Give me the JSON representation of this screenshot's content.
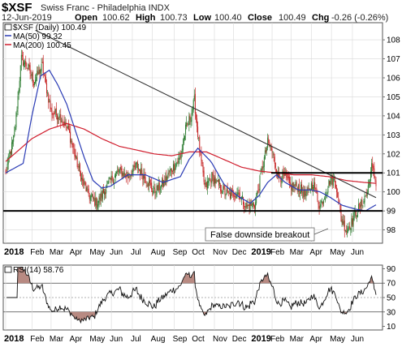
{
  "header": {
    "symbol": "$XSF",
    "name": "Swiss Franc - Philadelphia INDX",
    "date": "12-Jun-2019",
    "open_label": "Open",
    "open": "100.62",
    "high_label": "High",
    "high": "100.73",
    "low_label": "Low",
    "low": "100.40",
    "close_label": "Close",
    "close": "100.49",
    "chg_label": "Chg",
    "chg": "-0.26 (-0.26%)"
  },
  "legend": {
    "price": "$XSF (Daily) 100.49",
    "ma50": "MA(50) 99.32",
    "ma200": "MA(200) 100.45"
  },
  "rsi_legend": "RSI(14) 58.76",
  "annotation": "False downside breakout",
  "colors": {
    "up": "#2e7d32",
    "down": "#c62828",
    "ma50": "#2a3bb5",
    "ma200": "#d01c2c",
    "rsi_fill": "#b88a82",
    "trendline": "#333333",
    "grid": "#d8d8d8"
  },
  "chart_data": [
    {
      "type": "candlestick",
      "title": "$XSF Swiss Franc - Philadelphia INDX",
      "x_labels": [
        "2018",
        "Feb",
        "Mar",
        "Apr",
        "May",
        "Jun",
        "Jul",
        "Aug",
        "Sep",
        "Oct",
        "Nov",
        "Dec",
        "2019",
        "Feb",
        "Mar",
        "Apr",
        "May",
        "Jun"
      ],
      "ylim": [
        97.3,
        108.9
      ],
      "y_ticks": [
        98,
        99,
        100,
        101,
        102,
        103,
        104,
        105,
        106,
        107,
        108
      ],
      "price_anchors_t_close": [
        [
          0,
          101.0
        ],
        [
          10,
          103.0
        ],
        [
          18,
          107.0
        ],
        [
          26,
          106.5
        ],
        [
          32,
          105.8
        ],
        [
          42,
          106.6
        ],
        [
          52,
          104.2
        ],
        [
          62,
          104.0
        ],
        [
          72,
          103.2
        ],
        [
          80,
          101.8
        ],
        [
          88,
          100.5
        ],
        [
          96,
          99.8
        ],
        [
          104,
          99.4
        ],
        [
          112,
          100.0
        ],
        [
          120,
          100.6
        ],
        [
          130,
          101.1
        ],
        [
          140,
          100.8
        ],
        [
          150,
          101.4
        ],
        [
          160,
          100.7
        ],
        [
          170,
          100.0
        ],
        [
          180,
          100.4
        ],
        [
          190,
          101.2
        ],
        [
          200,
          101.8
        ],
        [
          206,
          103.3
        ],
        [
          212,
          104.0
        ],
        [
          216,
          104.8
        ],
        [
          222,
          102.2
        ],
        [
          228,
          100.2
        ],
        [
          236,
          100.8
        ],
        [
          246,
          100.2
        ],
        [
          256,
          99.8
        ],
        [
          266,
          100.0
        ],
        [
          276,
          99.2
        ],
        [
          286,
          99.4
        ],
        [
          294,
          101.3
        ],
        [
          300,
          102.6
        ],
        [
          306,
          102.0
        ],
        [
          312,
          100.8
        ],
        [
          320,
          100.8
        ],
        [
          326,
          100.3
        ],
        [
          334,
          100.3
        ],
        [
          344,
          99.8
        ],
        [
          352,
          100.5
        ],
        [
          360,
          99.2
        ],
        [
          366,
          99.9
        ],
        [
          372,
          100.7
        ],
        [
          378,
          100.5
        ],
        [
          384,
          98.6
        ],
        [
          390,
          98.0
        ],
        [
          396,
          98.4
        ],
        [
          402,
          99.0
        ],
        [
          408,
          99.4
        ],
        [
          414,
          100.0
        ],
        [
          419,
          101.3
        ],
        [
          422,
          100.8
        ],
        [
          424,
          100.5
        ]
      ],
      "series": [
        {
          "name": "MA(50)",
          "final_value": 99.32,
          "anchors_t_value": [
            [
              0,
              101.0
            ],
            [
              20,
              101.5
            ],
            [
              30,
              104.0
            ],
            [
              40,
              106.1
            ],
            [
              50,
              106.4
            ],
            [
              60,
              105.6
            ],
            [
              70,
              104.6
            ],
            [
              80,
              103.2
            ],
            [
              90,
              101.8
            ],
            [
              100,
              100.6
            ],
            [
              110,
              100.2
            ],
            [
              120,
              100.3
            ],
            [
              130,
              100.6
            ],
            [
              140,
              100.9
            ],
            [
              160,
              100.9
            ],
            [
              180,
              100.5
            ],
            [
              200,
              100.8
            ],
            [
              210,
              101.7
            ],
            [
              220,
              102.3
            ],
            [
              235,
              101.6
            ],
            [
              250,
              100.4
            ],
            [
              265,
              99.8
            ],
            [
              280,
              99.4
            ],
            [
              290,
              99.8
            ],
            [
              300,
              100.5
            ],
            [
              310,
              100.9
            ],
            [
              320,
              100.5
            ],
            [
              335,
              100.1
            ],
            [
              350,
              100.1
            ],
            [
              360,
              100.0
            ],
            [
              372,
              99.7
            ],
            [
              385,
              99.3
            ],
            [
              400,
              99.1
            ],
            [
              412,
              99.0
            ],
            [
              424,
              99.32
            ]
          ]
        },
        {
          "name": "MA(200)",
          "final_value": 100.45,
          "anchors_t_value": [
            [
              0,
              101.6
            ],
            [
              15,
              102.2
            ],
            [
              30,
              102.8
            ],
            [
              50,
              103.3
            ],
            [
              70,
              103.6
            ],
            [
              90,
              103.3
            ],
            [
              110,
              102.8
            ],
            [
              130,
              102.4
            ],
            [
              150,
              102.2
            ],
            [
              170,
              102.0
            ],
            [
              190,
              101.9
            ],
            [
              210,
              102.1
            ],
            [
              230,
              102.1
            ],
            [
              250,
              101.7
            ],
            [
              270,
              101.3
            ],
            [
              290,
              101.1
            ],
            [
              310,
              101.0
            ],
            [
              330,
              100.9
            ],
            [
              350,
              100.9
            ],
            [
              370,
              100.8
            ],
            [
              390,
              100.6
            ],
            [
              410,
              100.5
            ],
            [
              424,
              100.45
            ]
          ]
        }
      ],
      "trendline": {
        "from_t_value": [
          34,
          108.5
        ],
        "to_t_value": [
          424,
          99.7
        ]
      },
      "support_lines": [
        {
          "value": 99.0
        },
        {
          "value": 101.0,
          "from_t": 304
        }
      ]
    },
    {
      "type": "line",
      "title": "RSI(14)",
      "ylim": [
        5,
        95
      ],
      "y_ticks": [
        10,
        30,
        50,
        70,
        90
      ],
      "reference_lines": [
        30,
        50,
        70
      ],
      "final_value": 58.76
    }
  ]
}
